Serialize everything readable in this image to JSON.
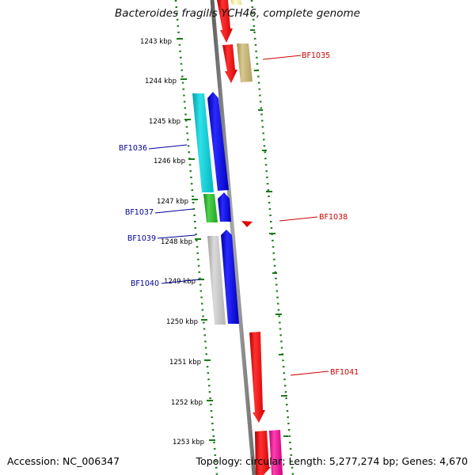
{
  "title": "Bacteroides fragilis YCH46, complete genome",
  "footer": {
    "accession": "Accession: NC_006347",
    "stats": "Topology: circular; Length: 5,277,274 bp; Genes: 4,670"
  },
  "ticks": [
    "1243 kbp",
    "1244 kbp",
    "1245 kbp",
    "1246 kbp",
    "1247 kbp",
    "1248 kbp",
    "1249 kbp",
    "1250 kbp",
    "1251 kbp",
    "1252 kbp",
    "1253 kbp"
  ],
  "gene_labels": [
    {
      "name": "BF1035",
      "color": "#cc0000"
    },
    {
      "name": "BF1036",
      "color": "#000099"
    },
    {
      "name": "BF1037",
      "color": "#000099"
    },
    {
      "name": "BF1038",
      "color": "#cc0000"
    },
    {
      "name": "BF1039",
      "color": "#000099"
    },
    {
      "name": "BF1040",
      "color": "#000099"
    },
    {
      "name": "BF1041",
      "color": "#cc0000"
    }
  ],
  "colors": {
    "backbone": "#808080",
    "tick": "#1a7a1a",
    "forward_label": "#cc0000",
    "reverse_label": "#000099"
  }
}
